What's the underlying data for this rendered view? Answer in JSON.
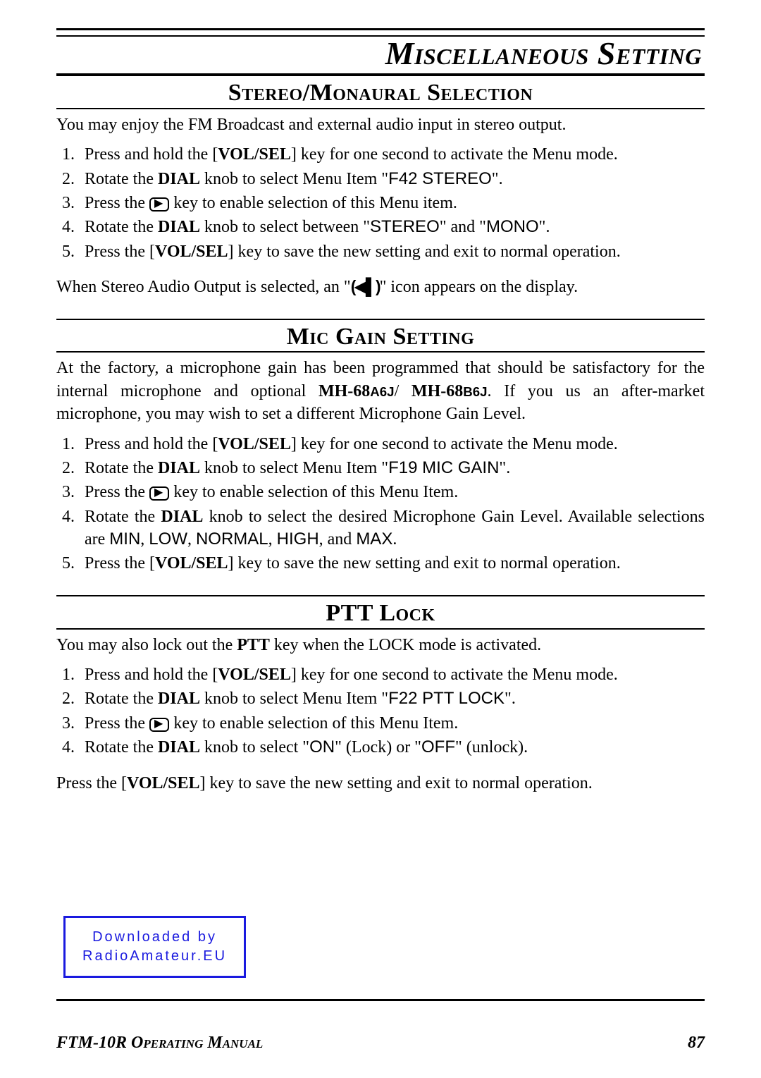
{
  "page_title": "Miscellaneous Setting",
  "sections": {
    "stereo": {
      "title": "Stereo/Monaural Selection",
      "intro": "You may enjoy the FM Broadcast and external audio input in stereo output.",
      "steps_html": [
        "Press and hold the [<span class=\"bold\">VOL/SEL</span>] key for one second to activate the Menu mode.",
        "Rotate the <span class=\"bold\">DIAL</span> knob to select Menu Item \"<span class=\"sans\">F42 STEREO</span>\".",
        "Press the <span class=\"playkey\" data-name=\"play-key-icon\" data-interactable=\"false\">▶</span> key to enable selection of this Menu item.",
        "Rotate the <span class=\"bold\">DIAL</span> knob to select between \"<span class=\"sans\">STEREO</span>\" and \"<span class=\"sans\">MONO</span>\".",
        "Press the [<span class=\"bold\">VOL/SEL</span>] key to save the new setting and exit to normal operation."
      ],
      "post_html": "When Stereo Audio Output is selected, an \"<span class=\"speaker-icon\" data-name=\"stereo-speaker-icon\" data-interactable=\"false\">(◀▌)</span>\" icon appears on the display."
    },
    "mic": {
      "title": "Mic Gain Setting",
      "intro_html": "At the factory, a microphone gain has been programmed that should be satisfactory for the internal microphone and optional <span class=\"bold\">MH-68<span class=\"sanssm\">A6J</span></span>/ <span class=\"bold\">MH-68<span class=\"sanssm\">B6J</span></span>. If you us an after-market microphone, you may wish to set a different Microphone Gain Level.",
      "steps_html": [
        "Press and hold the [<span class=\"bold\">VOL/SEL</span>] key for one second to activate the Menu mode.",
        "Rotate the <span class=\"bold\">DIAL</span> knob to select Menu Item \"<span class=\"sans\">F19 MIC GAIN</span>\".",
        "Press the <span class=\"playkey\" data-name=\"play-key-icon\" data-interactable=\"false\">▶</span> key to enable selection of this Menu Item.",
        "Rotate the <span class=\"bold\">DIAL</span> knob to select the desired Microphone Gain Level. Available selections are <span class=\"sans\">MIN</span>, <span class=\"sans\">LOW</span>, <span class=\"sans\">NORMAL</span>, <span class=\"sans\">HIGH</span>, and <span class=\"sans\">MAX</span>.",
        "Press the [<span class=\"bold\">VOL/SEL</span>] key to save the new setting and exit to normal operation."
      ]
    },
    "ptt": {
      "title": "PTT Lock",
      "intro_html": "You may also lock out the <span class=\"bold\">PTT</span> key when the LOCK mode is activated.",
      "steps_html": [
        "Press and hold the [<span class=\"bold\">VOL/SEL</span>] key for one second to activate the Menu mode.",
        "Rotate the <span class=\"bold\">DIAL</span> knob to select Menu Item \"<span class=\"sans\">F22 PTT LOCK</span>\".",
        "Press the <span class=\"playkey\" data-name=\"play-key-icon\" data-interactable=\"false\">▶</span> key to enable selection of this Menu Item.",
        "Rotate the <span class=\"bold\">DIAL</span> knob to select \"<span class=\"sans\">ON</span>\" (Lock) or \"<span class=\"sans\">OFF</span>\" (unlock)."
      ],
      "post_html": "Press the [<span class=\"bold\">VOL/SEL</span>] key to save the new setting and exit to normal operation."
    }
  },
  "download_box": {
    "line1": "Downloaded by",
    "line2": "RadioAmateur.EU"
  },
  "footer": {
    "left": "FTM-10R Operating Manual",
    "page": "87"
  }
}
